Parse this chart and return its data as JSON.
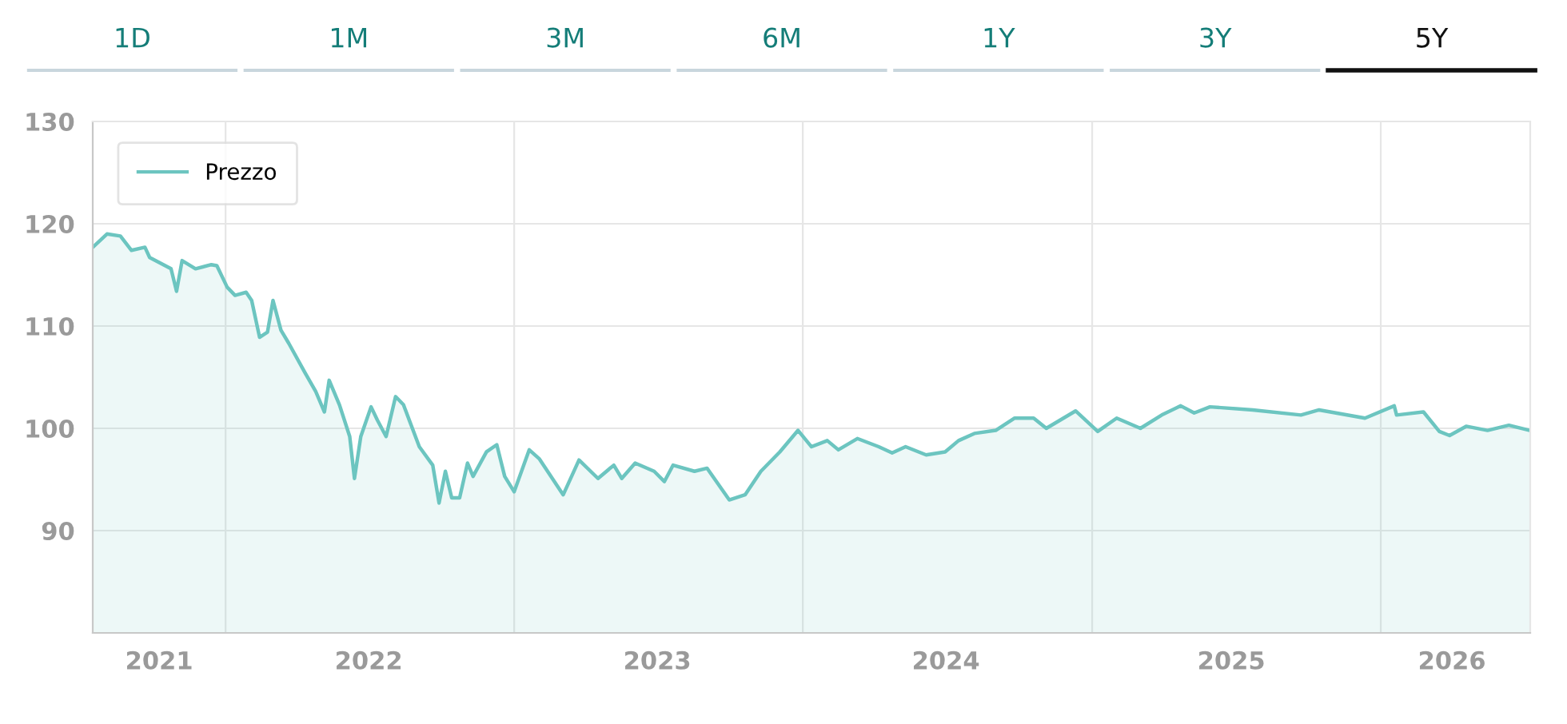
{
  "chart_data": {
    "type": "area",
    "annotations": [
      "1D",
      "1M",
      "3M",
      "6M",
      "1Y",
      "3Y",
      "5Y"
    ],
    "x": [
      "2021-07-17",
      "2021-08-04",
      "2021-08-21",
      "2021-09-04",
      "2021-09-21",
      "2021-09-27",
      "2021-10-24",
      "2021-10-31",
      "2021-11-07",
      "2021-11-24",
      "2021-12-14",
      "2021-12-21",
      "2022-01-03",
      "2022-01-13",
      "2022-01-27",
      "2022-02-03",
      "2022-02-13",
      "2022-02-23",
      "2022-03-02",
      "2022-03-12",
      "2022-03-22",
      "2022-04-11",
      "2022-04-25",
      "2022-05-06",
      "2022-05-12",
      "2022-05-25",
      "2022-06-07",
      "2022-06-13",
      "2022-06-21",
      "2022-07-04",
      "2022-07-12",
      "2022-07-23",
      "2022-08-04",
      "2022-08-14",
      "2022-09-03",
      "2022-09-20",
      "2022-09-28",
      "2022-10-06",
      "2022-10-14",
      "2022-10-24",
      "2022-11-03",
      "2022-11-10",
      "2022-11-27",
      "2022-12-10",
      "2022-12-20",
      "2023-01-01",
      "2023-01-20",
      "2023-02-02",
      "2023-03-04",
      "2023-03-24",
      "2023-04-17",
      "2023-05-07",
      "2023-05-17",
      "2023-06-03",
      "2023-06-27",
      "2023-07-10",
      "2023-07-21",
      "2023-08-17",
      "2023-09-02",
      "2023-09-30",
      "2023-10-20",
      "2023-11-09",
      "2023-12-03",
      "2023-12-26",
      "2024-01-12",
      "2024-02-01",
      "2024-02-15",
      "2024-03-10",
      "2024-04-06",
      "2024-04-23",
      "2024-05-10",
      "2024-06-05",
      "2024-06-29",
      "2024-07-16",
      "2024-08-05",
      "2024-09-01",
      "2024-09-25",
      "2024-10-19",
      "2024-11-04",
      "2024-12-11",
      "2025-01-08",
      "2025-02-01",
      "2025-03-03",
      "2025-03-30",
      "2025-04-23",
      "2025-05-10",
      "2025-05-30",
      "2025-07-23",
      "2025-09-22",
      "2025-10-15",
      "2025-12-12",
      "2026-01-18",
      "2026-01-21",
      "2026-02-24",
      "2026-03-16",
      "2026-03-29",
      "2026-04-19",
      "2026-05-16",
      "2026-06-12",
      "2026-07-08"
    ],
    "series": [
      {
        "name": "Prezzo",
        "color": "#6cc5c0",
        "values": [
          117.7,
          119.0,
          118.8,
          117.4,
          117.7,
          116.7,
          115.6,
          113.4,
          116.4,
          115.6,
          116.0,
          115.9,
          113.8,
          113.0,
          113.3,
          112.5,
          108.9,
          109.4,
          112.5,
          109.6,
          108.3,
          105.5,
          103.6,
          101.6,
          104.7,
          102.3,
          99.2,
          95.1,
          99.2,
          102.1,
          100.8,
          99.2,
          103.1,
          102.3,
          98.2,
          96.4,
          92.7,
          95.8,
          93.2,
          93.2,
          96.6,
          95.3,
          97.7,
          98.4,
          95.3,
          93.8,
          97.9,
          97.0,
          93.5,
          96.9,
          95.1,
          96.4,
          95.1,
          96.6,
          95.8,
          94.8,
          96.4,
          95.8,
          96.1,
          93.0,
          93.5,
          95.8,
          97.7,
          99.8,
          98.2,
          98.8,
          97.9,
          99.0,
          98.2,
          97.6,
          98.2,
          97.4,
          97.7,
          98.8,
          99.5,
          99.8,
          101.0,
          101.0,
          100.0,
          101.7,
          99.7,
          101.0,
          100.0,
          101.3,
          102.2,
          101.5,
          102.1,
          101.8,
          101.3,
          101.8,
          101.0,
          102.2,
          101.3,
          101.6,
          99.7,
          99.3,
          100.2,
          99.8,
          100.3,
          99.8
        ]
      }
    ],
    "xlim": [
      "2021-07-17",
      "2026-07-09"
    ],
    "xticks": [
      {
        "value": "2021-10-09",
        "label": "2021"
      },
      {
        "value": "2022-01-01",
        "label": null
      },
      {
        "value": "2022-07-01",
        "label": "2022"
      },
      {
        "value": "2023-01-01",
        "label": null
      },
      {
        "value": "2023-07-01",
        "label": "2023"
      },
      {
        "value": "2024-01-01",
        "label": null
      },
      {
        "value": "2024-06-30",
        "label": "2024"
      },
      {
        "value": "2025-01-01",
        "label": null
      },
      {
        "value": "2025-06-26",
        "label": "2025"
      },
      {
        "value": "2026-01-01",
        "label": null
      },
      {
        "value": "2026-04-01",
        "label": "2026"
      }
    ],
    "ylim": [
      80,
      130
    ],
    "yticks": [
      90,
      100,
      110,
      120,
      130
    ],
    "grid": true,
    "legend": "top left"
  }
}
